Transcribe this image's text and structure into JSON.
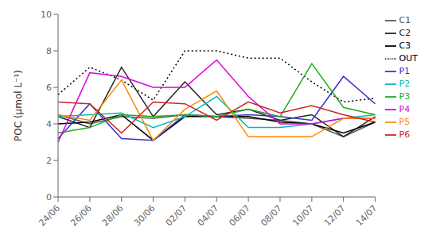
{
  "chart_data": {
    "type": "line",
    "ylabel": "POC (μmol L⁻¹)",
    "categories": [
      "24/06",
      "26/06",
      "28/06",
      "30/06",
      "02/07",
      "04/07",
      "06/07",
      "08/07",
      "10/07",
      "12/07",
      "14/07"
    ],
    "series": [
      {
        "name": "OUT",
        "color": "#000000",
        "line_style": "dotted",
        "values": [
          5.6,
          7.1,
          6.4,
          5.3,
          8.0,
          8.0,
          7.6,
          7.6,
          6.3,
          5.2,
          5.4
        ]
      },
      {
        "name": "C1",
        "color": "#555555",
        "line_style": "solid",
        "values": [
          4.5,
          4.0,
          4.4,
          4.3,
          4.5,
          4.4,
          4.3,
          4.2,
          4.0,
          3.3,
          4.1
        ]
      },
      {
        "name": "C2",
        "color": "#222222",
        "line_style": "solid",
        "values": [
          4.4,
          3.8,
          7.1,
          4.4,
          6.3,
          4.5,
          4.8,
          4.2,
          4.5,
          3.3,
          4.4
        ]
      },
      {
        "name": "C3",
        "color": "#000000",
        "line_style": "solid",
        "values": [
          4.0,
          4.1,
          4.5,
          3.1,
          4.4,
          4.4,
          4.4,
          4.1,
          4.0,
          3.5,
          4.1
        ]
      },
      {
        "name": "P1",
        "color": "#3333cc",
        "line_style": "solid",
        "values": [
          3.2,
          5.1,
          3.2,
          3.1,
          4.5,
          4.4,
          4.5,
          4.4,
          4.2,
          6.6,
          5.1
        ]
      },
      {
        "name": "P2",
        "color": "#00bbbb",
        "line_style": "solid",
        "values": [
          4.4,
          4.5,
          4.6,
          3.8,
          4.4,
          5.5,
          3.8,
          3.8,
          4.0,
          4.3,
          4.5
        ]
      },
      {
        "name": "P3",
        "color": "#22aa22",
        "line_style": "solid",
        "values": [
          3.5,
          3.8,
          4.5,
          4.4,
          4.5,
          4.4,
          4.8,
          4.4,
          7.3,
          4.9,
          4.5
        ]
      },
      {
        "name": "P4",
        "color": "#dd00dd",
        "line_style": "solid",
        "values": [
          3.0,
          6.8,
          6.6,
          6.0,
          6.0,
          7.5,
          5.5,
          4.0,
          4.0,
          4.3,
          4.3
        ]
      },
      {
        "name": "P5",
        "color": "#ff8800",
        "line_style": "solid",
        "values": [
          4.5,
          4.2,
          6.4,
          3.1,
          4.8,
          5.8,
          3.3,
          3.3,
          3.3,
          4.3,
          4.3
        ]
      },
      {
        "name": "P6",
        "color": "#cc2222",
        "line_style": "solid",
        "values": [
          5.2,
          5.1,
          3.5,
          5.2,
          5.1,
          4.2,
          5.2,
          4.6,
          5.0,
          4.5,
          4.1
        ]
      }
    ],
    "ylim": [
      0,
      10
    ],
    "yticks": [
      0,
      2,
      4,
      6,
      8,
      10
    ],
    "grid": false,
    "legend": "right"
  }
}
